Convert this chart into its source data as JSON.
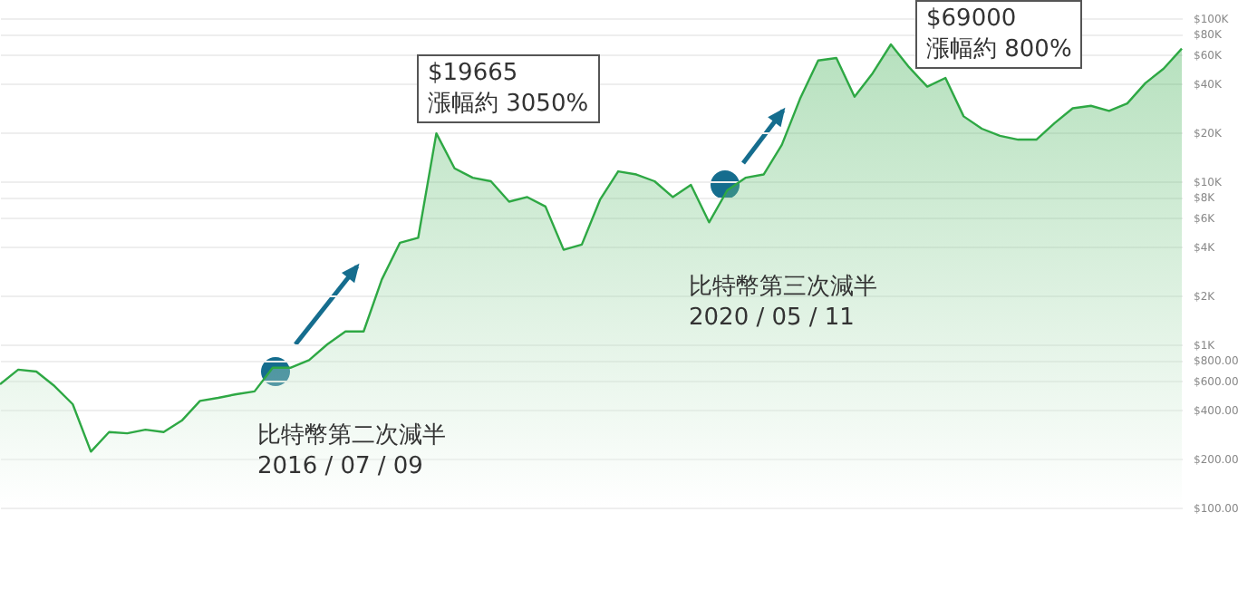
{
  "chart_data": {
    "type": "area",
    "categories": [
      null,
      null,
      null,
      null,
      null,
      null,
      null,
      null,
      null,
      null,
      null,
      null,
      null,
      null,
      null,
      null,
      null,
      null,
      null,
      null,
      null,
      null,
      null,
      null,
      null,
      null,
      null,
      null,
      null,
      null,
      null,
      null,
      null,
      null,
      null,
      null,
      null,
      null,
      null,
      null,
      null,
      null,
      null,
      null,
      null,
      null,
      null,
      null,
      null,
      null,
      null,
      null,
      null,
      null,
      null,
      null,
      null,
      null,
      null,
      null,
      null,
      null,
      null,
      null,
      null,
      null
    ],
    "series": [
      {
        "color": "#2ea844",
        "values": [
          570,
          700,
          681,
          555,
          430,
          220,
          290,
          285,
          300,
          290,
          341,
          450,
          470,
          495,
          515,
          720,
          720,
          800,
          1000,
          1200,
          1200,
          2500,
          4200,
          4500,
          19665,
          12000,
          10500,
          10000,
          7500,
          8000,
          7000,
          3800,
          4090,
          7700,
          11500,
          11000,
          10000,
          8000,
          9500,
          5600,
          8800,
          10500,
          11000,
          16700,
          32000,
          55000,
          57000,
          33000,
          46000,
          69000,
          50000,
          38000,
          43000,
          25000,
          21000,
          19000,
          18000,
          18000,
          22700,
          28000,
          29000,
          27000,
          30000,
          40000,
          49000,
          65000
        ]
      }
    ],
    "log": "y",
    "ylim": [
      100,
      100000
    ],
    "yticks": [
      {
        "value": 100000,
        "label": "$100K"
      },
      {
        "value": 80000,
        "label": "$80K"
      },
      {
        "value": 60000,
        "label": "$60K"
      },
      {
        "value": 40000,
        "label": "$40K"
      },
      {
        "value": 20000,
        "label": "$20K"
      },
      {
        "value": 10000,
        "label": "$10K"
      },
      {
        "value": 8000,
        "label": "$8K"
      },
      {
        "value": 6000,
        "label": "$6K"
      },
      {
        "value": 4000,
        "label": "$4K"
      },
      {
        "value": 2000,
        "label": "$2K"
      },
      {
        "value": 1000,
        "label": "$1K"
      },
      {
        "value": 800,
        "label": "$800.00"
      },
      {
        "value": 600,
        "label": "$600.00"
      },
      {
        "value": 400,
        "label": "$400.00"
      },
      {
        "value": 200,
        "label": "$200.00"
      },
      {
        "value": 100,
        "label": "$100.00"
      }
    ],
    "grid": "y",
    "tick_labels": "y",
    "annotations": [
      "比特幣第二次減半\n2016 / 07 / 09",
      "$19665\n漲幅約 3050%",
      "比特幣第三次減半\n2020 / 05 / 11",
      "$69000\n漲幅約 800%"
    ]
  }
}
